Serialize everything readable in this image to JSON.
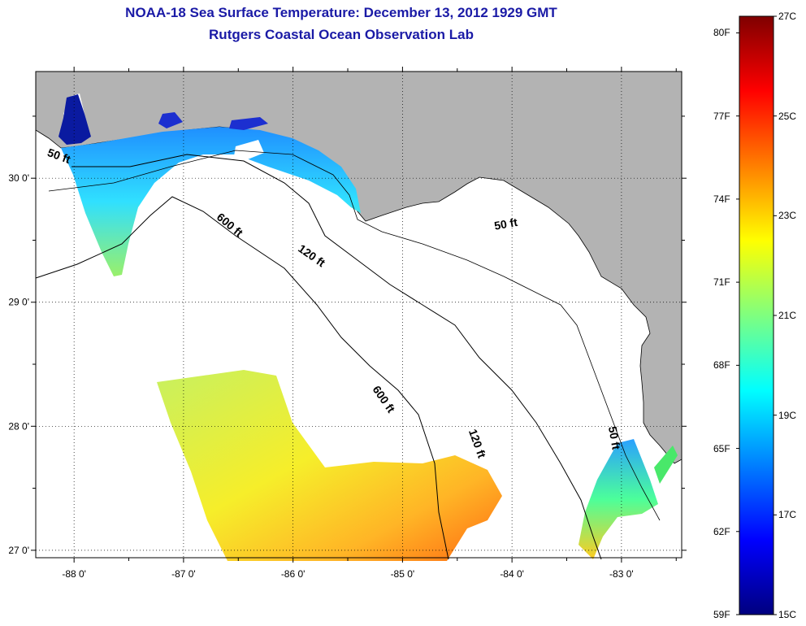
{
  "header": {
    "title": "NOAA-18 Sea Surface Temperature:  December 13, 2012 1929 GMT",
    "subtitle": "Rutgers Coastal Ocean Observation Lab"
  },
  "map": {
    "lon_range": [
      -88.35,
      -82.45
    ],
    "lat_range": [
      26.94,
      30.86
    ],
    "lon_ticks": [
      {
        "value": -88,
        "label": "-88 0'"
      },
      {
        "value": -87,
        "label": "-87 0'"
      },
      {
        "value": -86,
        "label": "-86 0'"
      },
      {
        "value": -85,
        "label": "-85 0'"
      },
      {
        "value": -84,
        "label": "-84 0'"
      },
      {
        "value": -83,
        "label": "-83 0'"
      }
    ],
    "lat_ticks": [
      {
        "value": 30,
        "label": "30 0'"
      },
      {
        "value": 29,
        "label": "29 0'"
      },
      {
        "value": 28,
        "label": "28 0'"
      },
      {
        "value": 27,
        "label": "27 0'"
      }
    ],
    "grid": "dotted",
    "land_color": "#b3b3b3",
    "water_color": "#ffffff",
    "isobath_labels": [
      {
        "text": "50 ft",
        "lon": -88.15,
        "lat": 30.15,
        "angle": 20
      },
      {
        "text": "600 ft",
        "lon": -86.6,
        "lat": 29.6,
        "angle": 40
      },
      {
        "text": "120 ft",
        "lon": -85.85,
        "lat": 29.35,
        "angle": 35
      },
      {
        "text": "50 ft",
        "lon": -84.05,
        "lat": 29.6,
        "angle": -10
      },
      {
        "text": "600 ft",
        "lon": -85.2,
        "lat": 28.2,
        "angle": 55
      },
      {
        "text": "120 ft",
        "lon": -84.35,
        "lat": 27.85,
        "angle": 70
      },
      {
        "text": "50 ft",
        "lon": -83.1,
        "lat": 27.9,
        "angle": 80
      }
    ]
  },
  "colorbar": {
    "min_c": 15,
    "max_c": 27,
    "c_labels": [
      "27C",
      "25C",
      "23C",
      "21C",
      "19C",
      "17C",
      "15C"
    ],
    "f_labels": [
      "80F",
      "77F",
      "74F",
      "71F",
      "68F",
      "65F",
      "62F",
      "59F"
    ],
    "colors": [
      "#00007f",
      "#0000ff",
      "#007fff",
      "#00ffff",
      "#7fff7f",
      "#ffff00",
      "#ff7f00",
      "#ff0000",
      "#7f0000"
    ]
  }
}
